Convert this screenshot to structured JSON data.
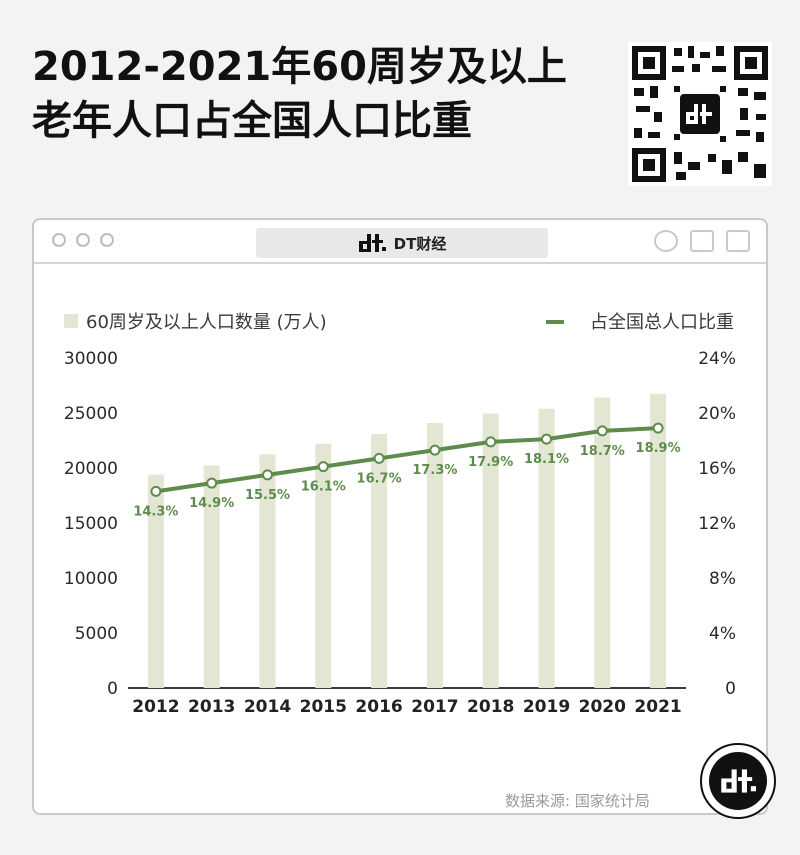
{
  "title": {
    "line1": "2012-2021年60周岁及以上",
    "line2": "老年人口占全国人口比重"
  },
  "brand": {
    "name": "DT财经"
  },
  "icons": {
    "logo": "dt-logo-icon",
    "qr": "qr-code-icon"
  },
  "source": "数据来源: 国家统计局",
  "colors": {
    "bar": "#e2e6d3",
    "line": "#5e8c4c",
    "label": "#5e8c4c"
  },
  "chart_data": {
    "type": "bar",
    "categories": [
      "2012",
      "2013",
      "2014",
      "2015",
      "2016",
      "2017",
      "2018",
      "2019",
      "2020",
      "2021"
    ],
    "series": [
      {
        "name": "60周岁及以上人口数量 (万人)",
        "type": "bar",
        "axis": "left",
        "values": [
          19390,
          20243,
          21242,
          22200,
          23086,
          24090,
          24949,
          25388,
          26402,
          26736
        ]
      },
      {
        "name": "占全国总人口比重",
        "type": "line",
        "axis": "right",
        "values": [
          14.3,
          14.9,
          15.5,
          16.1,
          16.7,
          17.3,
          17.9,
          18.1,
          18.7,
          18.9
        ],
        "labels": [
          "14.3%",
          "14.9%",
          "15.5%",
          "16.1%",
          "16.7%",
          "17.3%",
          "17.9%",
          "18.1%",
          "18.7%",
          "18.9%"
        ]
      }
    ],
    "y_left": {
      "ticks": [
        "0",
        "5000",
        "10000",
        "15000",
        "20000",
        "25000",
        "30000"
      ],
      "ylim": [
        0,
        30000
      ]
    },
    "y_right": {
      "ticks": [
        "0",
        "4%",
        "8%",
        "12%",
        "16%",
        "20%",
        "24%"
      ],
      "ylim": [
        0,
        24
      ]
    },
    "legend_position": "top",
    "grid": false
  }
}
